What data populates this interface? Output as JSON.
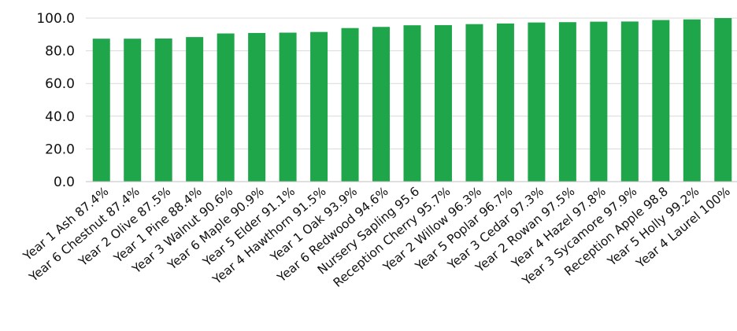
{
  "chart_data": {
    "type": "bar",
    "title": "",
    "xlabel": "",
    "ylabel": "",
    "ylim": [
      0,
      100
    ],
    "yticks": [
      "0.0",
      "20.0",
      "40.0",
      "60.0",
      "80.0",
      "100.0"
    ],
    "grid": true,
    "legend": "none",
    "bar_color": "#1fa64a",
    "categories": [
      "Year 1 Ash 87.4%",
      "Year 6 Chestnut 87.4%",
      "Year 2 Olive 87.5%",
      "Year 1 Pine 88.4%",
      "Year 3 Walnut 90.6%",
      "Year 6 Maple 90.9%",
      "Year 5 Elder 91.1%",
      "Year 4 Hawthorn 91.5%",
      "Year 1 Oak 93.9%",
      "Year 6 Redwood 94.6%",
      "Nursery Sapling 95.6",
      "Reception Cherry 95.7%",
      "Year 2 Willow 96.3%",
      "Year 5 Poplar 96.7%",
      "Year 3 Cedar 97.3%",
      "Year 2 Rowan 97.5%",
      "Year 4 Hazel 97.8%",
      "Year 3 Sycamore 97.9%",
      "Reception Apple 98.8",
      "Year 5 Holly 99.2%",
      "Year 4 Laurel 100%"
    ],
    "values": [
      87.4,
      87.4,
      87.5,
      88.4,
      90.6,
      90.9,
      91.1,
      91.5,
      93.9,
      94.6,
      95.6,
      95.7,
      96.3,
      96.7,
      97.3,
      97.5,
      97.8,
      97.9,
      98.8,
      99.2,
      100
    ]
  }
}
